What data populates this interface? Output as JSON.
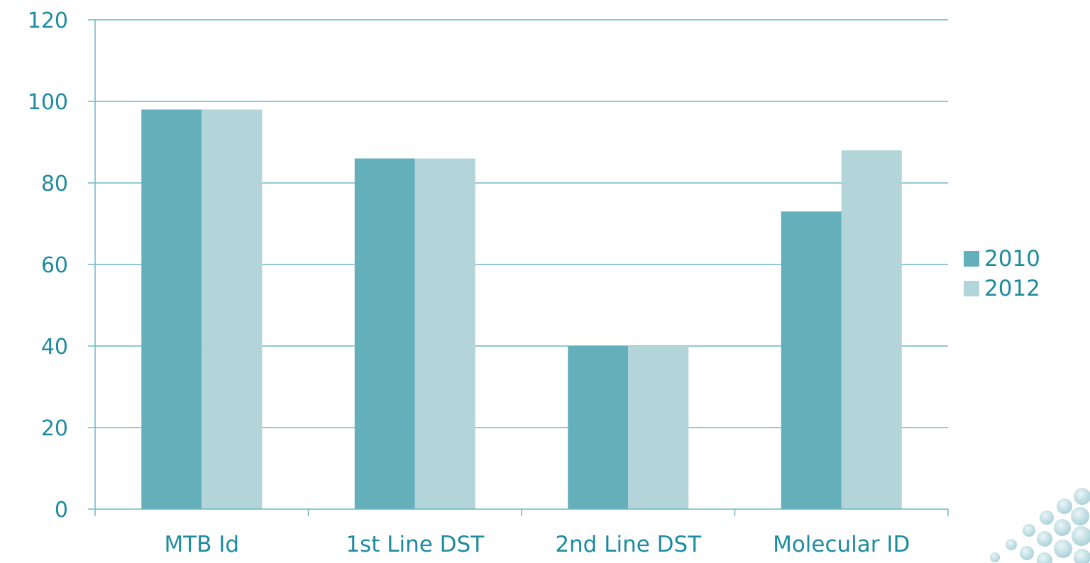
{
  "colors": {
    "series_2010": "#63afba",
    "series_2012": "#b3d4d8",
    "text": "#1f8ba0",
    "grid": "#6fb7c5"
  },
  "chart_data": {
    "type": "bar",
    "categories": [
      "MTB Id",
      "1st Line DST",
      "2nd Line DST",
      "Molecular ID"
    ],
    "series": [
      {
        "name": "2010",
        "values": [
          98,
          86,
          40,
          73
        ]
      },
      {
        "name": "2012",
        "values": [
          98,
          86,
          40,
          88
        ]
      }
    ],
    "ylim": [
      0,
      120
    ],
    "yticks": [
      0,
      20,
      40,
      60,
      80,
      100,
      120
    ],
    "grid": true,
    "legend_position": "right"
  }
}
